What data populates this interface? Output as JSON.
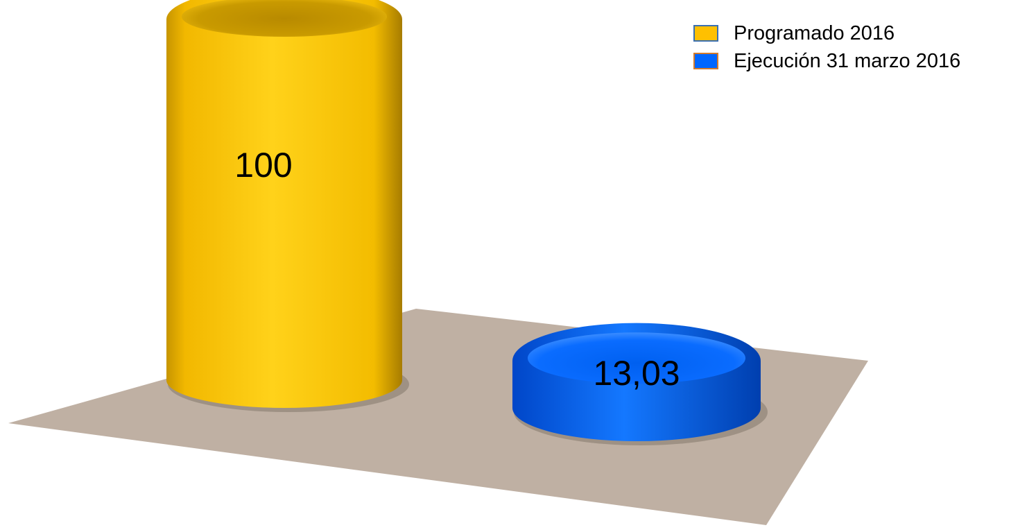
{
  "chart_data": {
    "type": "bar",
    "style": "3d-cylinder",
    "categories": [
      "Programado 2016",
      "Ejecución 31 marzo 2016"
    ],
    "values": [
      100,
      13.03
    ],
    "data_labels": [
      "100",
      "13,03"
    ],
    "colors": [
      "#FFC000",
      "#0066FF"
    ],
    "floor_color": "#BFB0A3",
    "ylim": [
      0,
      100
    ],
    "legend_position": "top-right",
    "grid": false,
    "title": "",
    "xlabel": "",
    "ylabel": ""
  },
  "legend": {
    "items": [
      {
        "label": "Programado 2016",
        "color": "#FFC000",
        "border": "#3a6fb0"
      },
      {
        "label": "Ejecución 31 marzo 2016",
        "color": "#0066FF",
        "border": "#d47a2a"
      }
    ]
  }
}
